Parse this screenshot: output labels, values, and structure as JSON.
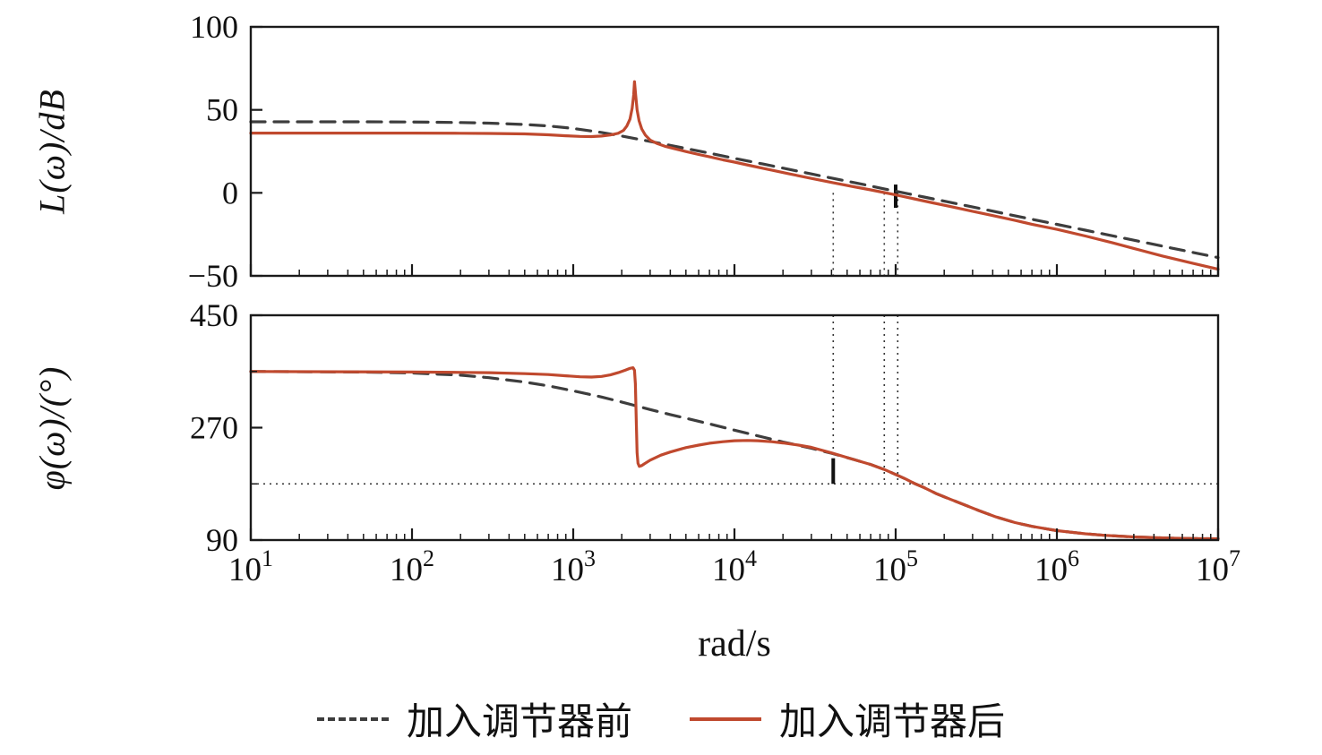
{
  "figure": {
    "background": "#ffffff"
  },
  "chart_data": {
    "type": "line",
    "title": "",
    "xlabel": "rad/s",
    "x_scale": "log10",
    "x_range": [
      10,
      10000000
    ],
    "x_tick_exponents": [
      1,
      2,
      3,
      4,
      5,
      6,
      7
    ],
    "grid": false,
    "legend_position": "bottom-center",
    "axis_color": "#1a1a1a",
    "panels": [
      {
        "id": "mag",
        "ylabel": "L(ω)/dB",
        "ylim": [
          -50,
          100
        ],
        "yticks": [
          -50,
          0,
          50,
          100
        ],
        "yminorticks": []
      },
      {
        "id": "phase",
        "ylabel": "φ(ω)/(°)",
        "ylim": [
          90,
          450
        ],
        "yticks": [
          90,
          270,
          450
        ],
        "yminorticks": [
          180,
          360
        ]
      }
    ],
    "series": [
      {
        "name": "加入调节器前",
        "style": "dashed",
        "color": "#3d3d3d",
        "mag": [
          [
            10,
            42.8
          ],
          [
            50,
            42.8
          ],
          [
            100,
            42.7
          ],
          [
            200,
            42.4
          ],
          [
            300,
            42.0
          ],
          [
            500,
            41.2
          ],
          [
            700,
            40.3
          ],
          [
            1000,
            38.8
          ],
          [
            1500,
            36.4
          ],
          [
            2000,
            34.2
          ],
          [
            3000,
            31.0
          ],
          [
            4000,
            28.6
          ],
          [
            5000,
            26.7
          ],
          [
            7000,
            23.9
          ],
          [
            10000,
            20.8
          ],
          [
            15000,
            17.4
          ],
          [
            20000,
            14.9
          ],
          [
            30000,
            11.4
          ],
          [
            40000,
            8.9
          ],
          [
            55000,
            6.2
          ],
          [
            70000,
            4.1
          ],
          [
            85000,
            2.4
          ],
          [
            100000,
            1.0
          ],
          [
            120000,
            -0.6
          ],
          [
            150000,
            -2.5
          ],
          [
            200000,
            -5.0
          ],
          [
            300000,
            -8.5
          ],
          [
            500000,
            -13.0
          ],
          [
            700000,
            -15.9
          ],
          [
            1000000,
            -19.0
          ],
          [
            1500000,
            -22.5
          ],
          [
            2000000,
            -25.0
          ],
          [
            3000000,
            -28.5
          ],
          [
            5000000,
            -33.0
          ],
          [
            7000000,
            -35.9
          ],
          [
            10000000,
            -39.0
          ]
        ],
        "phase": [
          [
            10,
            360
          ],
          [
            50,
            359
          ],
          [
            100,
            357.5
          ],
          [
            200,
            354
          ],
          [
            300,
            350
          ],
          [
            500,
            343
          ],
          [
            700,
            337
          ],
          [
            1000,
            329
          ],
          [
            1500,
            319
          ],
          [
            2000,
            311
          ],
          [
            3000,
            299
          ],
          [
            4000,
            291
          ],
          [
            5000,
            285
          ],
          [
            7000,
            276
          ],
          [
            10000,
            266
          ],
          [
            15000,
            255
          ],
          [
            20000,
            247
          ],
          [
            30000,
            237
          ],
          [
            40000,
            229
          ],
          [
            55000,
            219
          ],
          [
            70000,
            211
          ],
          [
            85000,
            203
          ],
          [
            100000,
            195
          ],
          [
            115000,
            188
          ],
          [
            130000,
            181
          ],
          [
            150000,
            174
          ],
          [
            180000,
            164
          ],
          [
            220000,
            155
          ],
          [
            270000,
            146
          ],
          [
            330000,
            137
          ],
          [
            420000,
            127
          ],
          [
            550000,
            118
          ],
          [
            700000,
            112
          ],
          [
            1000000,
            105
          ],
          [
            1500000,
            100
          ],
          [
            2000000,
            97.5
          ],
          [
            3000000,
            95
          ],
          [
            5000000,
            93
          ],
          [
            7000000,
            92.5
          ],
          [
            10000000,
            92
          ]
        ]
      },
      {
        "name": "加入调节器后",
        "style": "solid",
        "color": "#c0492e",
        "mag": [
          [
            10,
            36
          ],
          [
            50,
            36
          ],
          [
            100,
            36
          ],
          [
            200,
            35.9
          ],
          [
            300,
            35.8
          ],
          [
            500,
            35.5
          ],
          [
            700,
            35.0
          ],
          [
            900,
            34.4
          ],
          [
            1100,
            34.0
          ],
          [
            1300,
            33.9
          ],
          [
            1500,
            34.2
          ],
          [
            1700,
            34.9
          ],
          [
            1900,
            35.9
          ],
          [
            2050,
            37.6
          ],
          [
            2150,
            40.2
          ],
          [
            2250,
            44.5
          ],
          [
            2320,
            51
          ],
          [
            2370,
            59
          ],
          [
            2400,
            67
          ],
          [
            2440,
            59
          ],
          [
            2490,
            50
          ],
          [
            2560,
            43.5
          ],
          [
            2660,
            38.5
          ],
          [
            2800,
            34.8
          ],
          [
            3000,
            31.8
          ],
          [
            3300,
            29.8
          ],
          [
            3700,
            28.1
          ],
          [
            4200,
            26.7
          ],
          [
            5000,
            24.9
          ],
          [
            6000,
            23.1
          ],
          [
            7000,
            21.7
          ],
          [
            8500,
            19.9
          ],
          [
            10000,
            18.5
          ],
          [
            13000,
            16.1
          ],
          [
            17000,
            13.7
          ],
          [
            22000,
            11.4
          ],
          [
            30000,
            8.7
          ],
          [
            40000,
            6.3
          ],
          [
            55000,
            3.7
          ],
          [
            70000,
            1.8
          ],
          [
            85000,
            0.2
          ],
          [
            100000,
            -1.2
          ],
          [
            130000,
            -3.6
          ],
          [
            170000,
            -6.0
          ],
          [
            220000,
            -8.3
          ],
          [
            300000,
            -11.1
          ],
          [
            400000,
            -13.7
          ],
          [
            550000,
            -16.6
          ],
          [
            700000,
            -18.9
          ],
          [
            1000000,
            -22
          ],
          [
            1500000,
            -26
          ],
          [
            2200000,
            -30
          ],
          [
            3000000,
            -33.5
          ],
          [
            4500000,
            -38
          ],
          [
            7000000,
            -42.5
          ],
          [
            10000000,
            -46
          ]
        ],
        "phase": [
          [
            10,
            360
          ],
          [
            100,
            359
          ],
          [
            200,
            358.5
          ],
          [
            300,
            358
          ],
          [
            500,
            356.5
          ],
          [
            700,
            355
          ],
          [
            900,
            353
          ],
          [
            1100,
            351.5
          ],
          [
            1300,
            351
          ],
          [
            1500,
            352
          ],
          [
            1700,
            354.5
          ],
          [
            1900,
            358
          ],
          [
            2100,
            362
          ],
          [
            2250,
            365
          ],
          [
            2350,
            366
          ],
          [
            2400,
            362
          ],
          [
            2430,
            340
          ],
          [
            2460,
            280
          ],
          [
            2490,
            230
          ],
          [
            2520,
            213
          ],
          [
            2570,
            208
          ],
          [
            2650,
            209
          ],
          [
            2800,
            213
          ],
          [
            3000,
            218
          ],
          [
            3500,
            226
          ],
          [
            4000,
            231
          ],
          [
            5000,
            238
          ],
          [
            6000,
            242
          ],
          [
            7000,
            245
          ],
          [
            8500,
            247.5
          ],
          [
            10000,
            249
          ],
          [
            12000,
            249.5
          ],
          [
            14000,
            249
          ],
          [
            17000,
            247.5
          ],
          [
            20000,
            245.5
          ],
          [
            25000,
            242
          ],
          [
            30000,
            238.5
          ],
          [
            40000,
            229.5
          ],
          [
            55000,
            219
          ],
          [
            70000,
            211
          ],
          [
            85000,
            203
          ],
          [
            100000,
            195
          ],
          [
            115000,
            188
          ],
          [
            130000,
            181
          ],
          [
            150000,
            174
          ],
          [
            180000,
            164
          ],
          [
            220000,
            155
          ],
          [
            270000,
            146
          ],
          [
            330000,
            137
          ],
          [
            420000,
            127
          ],
          [
            550000,
            118
          ],
          [
            700000,
            112
          ],
          [
            1000000,
            105
          ],
          [
            1500000,
            100
          ],
          [
            2000000,
            97.5
          ],
          [
            3000000,
            95
          ],
          [
            5000000,
            93
          ],
          [
            7000000,
            92.5
          ],
          [
            10000000,
            92
          ]
        ]
      }
    ],
    "annotations": [
      {
        "panel": "mag",
        "type": "vline",
        "x": 41000,
        "v1": 0,
        "v2": -50,
        "style": "dotted"
      },
      {
        "panel": "mag",
        "type": "vline",
        "x": 85000,
        "v1": 0,
        "v2": -50,
        "style": "dotted"
      },
      {
        "panel": "mag",
        "type": "vline",
        "x": 103000,
        "v1": 0,
        "v2": -50,
        "style": "dotted"
      },
      {
        "panel": "mag",
        "type": "marker",
        "x": 100000,
        "v1": 5,
        "v2": -9,
        "style": "solid"
      },
      {
        "panel": "phase",
        "type": "vline",
        "x": 41000,
        "v1": 450,
        "v2": 180,
        "style": "dotted"
      },
      {
        "panel": "phase",
        "type": "vline",
        "x": 85000,
        "v1": 450,
        "v2": 180,
        "style": "dotted"
      },
      {
        "panel": "phase",
        "type": "vline",
        "x": 103000,
        "v1": 450,
        "v2": 180,
        "style": "dotted"
      },
      {
        "panel": "phase",
        "type": "hline",
        "v": 180,
        "style": "dotted"
      },
      {
        "panel": "phase",
        "type": "marker",
        "x": 41000,
        "v1": 221,
        "v2": 180,
        "style": "solid"
      }
    ]
  }
}
